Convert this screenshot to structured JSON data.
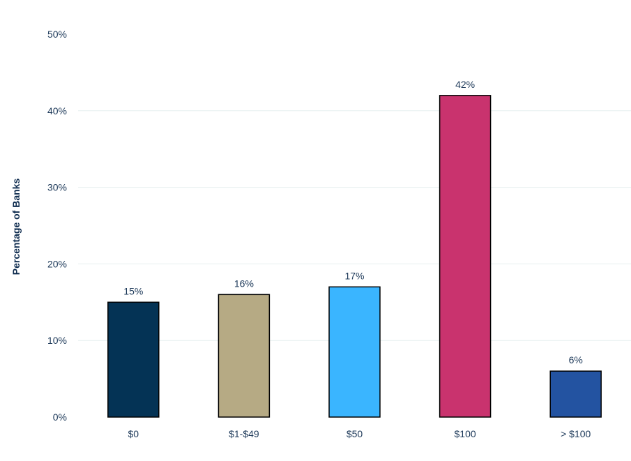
{
  "chart_data": {
    "type": "bar",
    "title": "",
    "xlabel": "",
    "ylabel": "Percentage of Banks",
    "categories": [
      "$0",
      "$1-$49",
      "$50",
      "$100",
      "> $100"
    ],
    "values": [
      15,
      16,
      17,
      42,
      6
    ],
    "value_labels": [
      "15%",
      "16%",
      "17%",
      "42%",
      "6%"
    ],
    "bar_colors": [
      "#043355",
      "#b6aa84",
      "#3ab5ff",
      "#c9336e",
      "#2353a1"
    ],
    "bar_border_color": "#000000",
    "ylim": [
      0,
      50
    ],
    "yticks": [
      0,
      10,
      20,
      30,
      40,
      50
    ],
    "ytick_labels": [
      "0%",
      "10%",
      "20%",
      "30%",
      "40%",
      "50%"
    ],
    "grid": true,
    "grid_color": "#e6efef",
    "legend": false
  }
}
